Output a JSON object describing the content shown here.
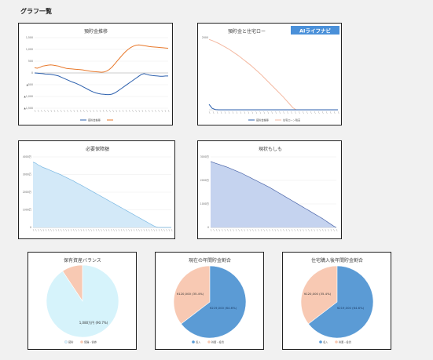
{
  "page": {
    "title": "グラフ一覧"
  },
  "colors": {
    "blue_line": "#2b5fad",
    "orange_line": "#e8782a",
    "salmon": "#f4b8a0",
    "light_cyan": "#d6f3fb",
    "pie_blue": "#5b9bd5",
    "pie_peach": "#f8c9b3",
    "area_light_blue": "#d3e9f8",
    "area_periwinkle": "#c5d3ef",
    "badge_blue": "#4a90d9"
  },
  "badge": {
    "text": "AIライフナビ",
    "icon": "ai-logo-icon"
  },
  "charts": {
    "savings_forecast": {
      "title": "預貯金推移",
      "legend": [
        "預貯金推移",
        ""
      ]
    },
    "savings_vs_mortgage": {
      "title": "預貯金と住宅ロー",
      "legend": [
        "預貯金推移",
        "住宅ローン残高"
      ]
    },
    "required_coverage": {
      "title": "必要保障額"
    },
    "just_in_case": {
      "title": "現状もしも"
    },
    "asset_balance": {
      "title": "保有資産バランス",
      "slice_label": "1,080万円 (90.7%)",
      "legend": [
        "預貯",
        "保険・債券"
      ]
    },
    "current_savings_ratio": {
      "title": "現在の年間貯金割合",
      "labels": [
        "¥120,000 (35.4%)",
        "¥219,000 (64.6%)"
      ],
      "legend": [
        "収入",
        "貯蓄・投資"
      ]
    },
    "post_purchase_savings_ratio": {
      "title": "住宅購入後年間貯金割合",
      "labels": [
        "¥120,000 (35.4%)",
        "¥219,000 (64.6%)"
      ],
      "legend": [
        "収入",
        "貯蓄・投資"
      ]
    }
  },
  "chart_data": [
    {
      "type": "line",
      "title": "預貯金推移",
      "ylim": [
        -1500,
        1500
      ],
      "y_ticks": [
        1500,
        1000,
        500,
        0,
        -500,
        -1000,
        -1500
      ],
      "y_tick_labels": [
        "1,500",
        "1,000",
        "500",
        "0",
        "▲500",
        "▲1,000",
        "▲1,500"
      ],
      "series": [
        {
          "name": "預貯金推移",
          "values": [
            0,
            -10,
            -20,
            -30,
            -45,
            -50,
            -60,
            -80,
            -100,
            -130,
            -180,
            -230,
            -280,
            -330,
            -380,
            -420,
            -470,
            -520,
            -580,
            -640,
            -700,
            -760,
            -810,
            -850,
            -880,
            -900,
            -910,
            -920,
            -920,
            -900,
            -850,
            -780,
            -700,
            -620,
            -540,
            -460,
            -380,
            -300,
            -220,
            -140,
            -60,
            -30,
            -60,
            -90,
            -110,
            -120,
            -130,
            -140,
            -140,
            -130,
            -130
          ]
        },
        {
          "name": "",
          "values": [
            220,
            200,
            240,
            290,
            310,
            330,
            340,
            330,
            310,
            290,
            250,
            220,
            190,
            180,
            170,
            160,
            150,
            140,
            130,
            110,
            90,
            70,
            60,
            50,
            40,
            30,
            40,
            80,
            150,
            250,
            380,
            520,
            650,
            780,
            900,
            1000,
            1080,
            1140,
            1180,
            1190,
            1180,
            1160,
            1140,
            1120,
            1110,
            1100,
            1090,
            1080,
            1070,
            1060,
            1050
          ]
        }
      ]
    },
    {
      "type": "line",
      "title": "預貯金と住宅ロー",
      "ylim": [
        0,
        2000
      ],
      "series": [
        {
          "name": "預貯金推移",
          "values": [
            150,
            40,
            5,
            0,
            0,
            0,
            0,
            0,
            0,
            0,
            0,
            0,
            0,
            0,
            0,
            0,
            0,
            0,
            0,
            0,
            0,
            0,
            0,
            0,
            0,
            0,
            0,
            0,
            0,
            0,
            0,
            0,
            0,
            0,
            0,
            0,
            0,
            0,
            0,
            0,
            0
          ]
        },
        {
          "name": "住宅ローン残高",
          "values": [
            1950,
            1920,
            1880,
            1840,
            1790,
            1740,
            1690,
            1630,
            1570,
            1510,
            1440,
            1370,
            1300,
            1230,
            1150,
            1070,
            990,
            900,
            810,
            720,
            630,
            540,
            450,
            360,
            260,
            160,
            60,
            0,
            0,
            0,
            0,
            0,
            0,
            0,
            0,
            0,
            0,
            0,
            0,
            0,
            0
          ]
        }
      ]
    },
    {
      "type": "area",
      "title": "必要保障額",
      "ylim": [
        0,
        4000
      ],
      "y_ticks": [
        0,
        1000,
        2000,
        3000,
        4000
      ],
      "y_tick_labels": [
        "0",
        "1000万",
        "2000万",
        "3000万",
        "4000万"
      ],
      "values": [
        3700,
        3650,
        3550,
        3480,
        3400,
        3350,
        3290,
        3230,
        3170,
        3110,
        3050,
        2990,
        2920,
        2850,
        2780,
        2710,
        2640,
        2560,
        2480,
        2410,
        2330,
        2250,
        2170,
        2090,
        2010,
        1930,
        1850,
        1770,
        1690,
        1610,
        1530,
        1450,
        1370,
        1290,
        1210,
        1130,
        1050,
        970,
        890,
        810,
        730,
        650,
        570,
        490,
        410,
        330,
        250,
        170,
        90,
        30,
        0,
        0,
        0,
        0,
        0,
        0
      ]
    },
    {
      "type": "area",
      "title": "現状もしも",
      "ylim": [
        0,
        3000
      ],
      "y_ticks": [
        0,
        1000,
        2000,
        3000
      ],
      "y_tick_labels": [
        "0",
        "1000万",
        "2000万",
        "3000万"
      ],
      "values": [
        2800,
        2760,
        2720,
        2680,
        2640,
        2600,
        2560,
        2510,
        2460,
        2410,
        2360,
        2310,
        2250,
        2190,
        2130,
        2070,
        2010,
        1950,
        1890,
        1830,
        1770,
        1710,
        1640,
        1570,
        1500,
        1430,
        1360,
        1290,
        1220,
        1150,
        1080,
        1010,
        940,
        870,
        800,
        730,
        660,
        590,
        520,
        450,
        380,
        300,
        220,
        140,
        60,
        0
      ]
    },
    {
      "type": "pie",
      "title": "保有資産バランス",
      "slices": [
        {
          "label": "預貯",
          "value": 90.7
        },
        {
          "label": "保険・債券",
          "value": 9.3
        }
      ]
    },
    {
      "type": "pie",
      "title": "現在の年間貯金割合",
      "slices": [
        {
          "label": "収入",
          "value": 64.6
        },
        {
          "label": "貯蓄・投資",
          "value": 35.4
        }
      ]
    },
    {
      "type": "pie",
      "title": "住宅購入後年間貯金割合",
      "slices": [
        {
          "label": "収入",
          "value": 64.6
        },
        {
          "label": "貯蓄・投資",
          "value": 35.4
        }
      ]
    }
  ]
}
